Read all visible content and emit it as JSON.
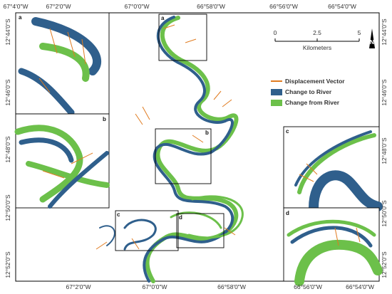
{
  "top_labels": [
    "67°4'0\"W",
    "67°2'0\"W",
    "67°0'0\"W",
    "66°58'0\"W",
    "66°56'0\"W",
    "66°54'0\"W"
  ],
  "bottom_labels": [
    "67°2'0\"W",
    "67°0'0\"W",
    "66°58'0\"W",
    "66°56'0\"W",
    "66°54'0\"W"
  ],
  "left_labels": [
    "12°44'0\"S",
    "12°46'0\"S",
    "12°48'0\"S",
    "12°50'0\"S",
    "12°52'0\"S"
  ],
  "right_labels": [
    "12°44'0\"S",
    "12°46'0\"S",
    "12°48'0\"S",
    "12°50'0\"S",
    "12°52'0\"S"
  ],
  "scale_bar": {
    "ticks": [
      0,
      2.5,
      5
    ],
    "unit": "Kilometers"
  },
  "north": "N",
  "legend": [
    "Displacement Vector",
    "Change to River",
    "Change from River"
  ],
  "inset_labels": [
    "a",
    "b",
    "c",
    "d"
  ]
}
